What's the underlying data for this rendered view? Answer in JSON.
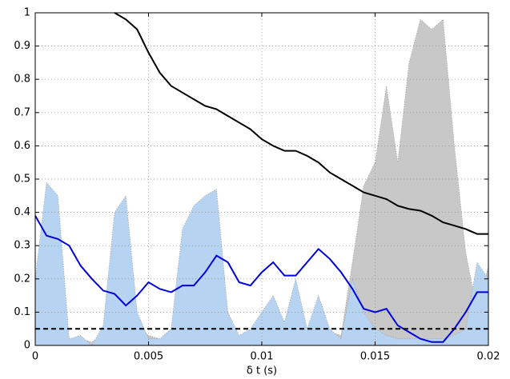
{
  "chart_data": {
    "type": "line",
    "x": [
      0,
      0.0005,
      0.001,
      0.0015,
      0.002,
      0.0025,
      0.003,
      0.0035,
      0.004,
      0.0045,
      0.005,
      0.0055,
      0.006,
      0.0065,
      0.007,
      0.0075,
      0.008,
      0.0085,
      0.009,
      0.0095,
      0.01,
      0.0105,
      0.011,
      0.0115,
      0.012,
      0.0125,
      0.013,
      0.0135,
      0.014,
      0.0145,
      0.015,
      0.0155,
      0.016,
      0.0165,
      0.017,
      0.0175,
      0.018,
      0.0185,
      0.019,
      0.0195,
      0.02
    ],
    "series": [
      {
        "style": "area",
        "color": "#c8c8c8",
        "values": [
          0.02,
          0.02,
          0.02,
          0.01,
          0.02,
          0.01,
          0.03,
          0.1,
          0.22,
          0.06,
          0.03,
          0.02,
          0.03,
          0.05,
          0.06,
          0.08,
          0.06,
          0.03,
          0.02,
          0.03,
          0.05,
          0.06,
          0.04,
          0.05,
          0.04,
          0.06,
          0.04,
          0.03,
          0.25,
          0.48,
          0.55,
          0.78,
          0.55,
          0.85,
          0.98,
          0.95,
          0.98,
          0.6,
          0.28,
          0.1,
          0.24
        ]
      },
      {
        "style": "area",
        "color": "#b6d3f2",
        "values": [
          0.2,
          0.49,
          0.45,
          0.02,
          0.03,
          0,
          0.06,
          0.4,
          0.45,
          0.1,
          0.02,
          0.02,
          0.05,
          0.35,
          0.42,
          0.45,
          0.47,
          0.1,
          0.03,
          0.05,
          0.1,
          0.15,
          0.07,
          0.2,
          0.05,
          0.15,
          0.05,
          0.02,
          0.2,
          0.1,
          0.05,
          0.03,
          0.02,
          0.02,
          0.02,
          0.02,
          0.02,
          0.03,
          0.05,
          0.25,
          0.2
        ]
      },
      {
        "style": "line",
        "color": "#000000",
        "values": [
          null,
          null,
          null,
          null,
          null,
          null,
          null,
          1.0,
          0.98,
          0.95,
          0.88,
          0.82,
          0.78,
          0.76,
          0.74,
          0.72,
          0.71,
          0.69,
          0.67,
          0.65,
          0.62,
          0.6,
          0.585,
          0.585,
          0.57,
          0.55,
          0.52,
          0.5,
          0.48,
          0.46,
          0.45,
          0.44,
          0.42,
          0.41,
          0.405,
          0.39,
          0.37,
          0.36,
          0.35,
          0.335,
          0.335
        ]
      },
      {
        "style": "line",
        "color": "#0000dd",
        "values": [
          0.39,
          0.33,
          0.32,
          0.3,
          0.24,
          0.2,
          0.165,
          0.155,
          0.12,
          0.15,
          0.19,
          0.17,
          0.16,
          0.18,
          0.18,
          0.22,
          0.27,
          0.25,
          0.19,
          0.18,
          0.22,
          0.25,
          0.21,
          0.21,
          0.25,
          0.29,
          0.26,
          0.22,
          0.17,
          0.11,
          0.1,
          0.11,
          0.06,
          0.04,
          0.02,
          0.01,
          0.01,
          0.05,
          0.1,
          0.16,
          0.16
        ]
      },
      {
        "style": "dashed",
        "color": "#000000",
        "values": [
          0.05,
          0.05,
          0.05,
          0.05,
          0.05,
          0.05,
          0.05,
          0.05,
          0.05,
          0.05,
          0.05,
          0.05,
          0.05,
          0.05,
          0.05,
          0.05,
          0.05,
          0.05,
          0.05,
          0.05,
          0.05,
          0.05,
          0.05,
          0.05,
          0.05,
          0.05,
          0.05,
          0.05,
          0.05,
          0.05,
          0.05,
          0.05,
          0.05,
          0.05,
          0.05,
          0.05,
          0.05,
          0.05,
          0.05,
          0.05,
          0.05
        ]
      }
    ],
    "xlabel": "δ t (s)",
    "xlim": [
      0,
      0.02
    ],
    "xticks": [
      0,
      0.005,
      0.01,
      0.015,
      0.02
    ],
    "ylim": [
      0,
      1
    ],
    "yticks": [
      0,
      0.1,
      0.2,
      0.3,
      0.4,
      0.5,
      0.6,
      0.7,
      0.8,
      0.9,
      1
    ],
    "grid": true
  }
}
